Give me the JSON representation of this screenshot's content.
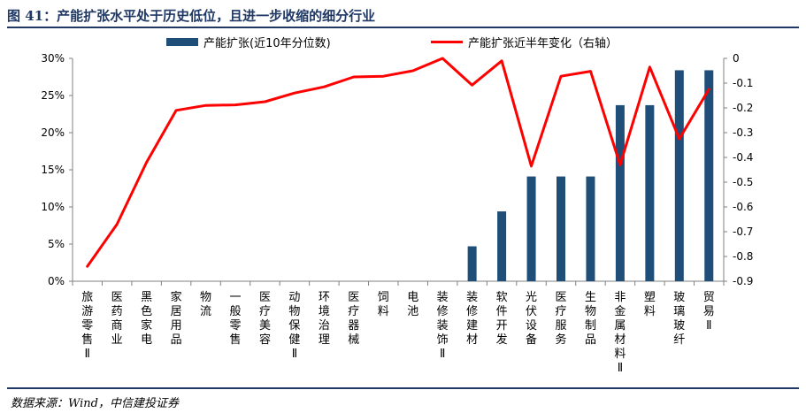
{
  "header": {
    "title": "图 41：产能扩张水平处于历史低位，且进一步收缩的细分行业"
  },
  "footer": {
    "source": "数据来源：Wind，中信建投证券"
  },
  "colors": {
    "bar": "#1f4e79",
    "line": "#ff0000",
    "axis": "#808080",
    "rule": "#1f3864"
  },
  "chart_data": {
    "type": "bar",
    "categories": [
      "旅游零售Ⅱ",
      "医药商业",
      "黑色家电",
      "家居用品",
      "物流",
      "一般零售",
      "医疗美容",
      "动物保健Ⅱ",
      "环境治理",
      "医疗器械",
      "饲料",
      "电池",
      "装修装饰Ⅱ",
      "装修建材",
      "软件开发",
      "光伏设备",
      "医疗服务",
      "生物制品",
      "非金属材料Ⅱ",
      "塑料",
      "玻璃玻纤",
      "贸易Ⅱ"
    ],
    "series": [
      {
        "name": "产能扩张(近10年分位数)",
        "type": "bar",
        "axis": "left",
        "values": [
          0,
          0,
          0,
          0,
          0,
          0,
          0,
          0,
          0,
          0,
          0,
          0,
          0,
          0.047,
          0.094,
          0.141,
          0.141,
          0.141,
          0.237,
          0.237,
          0.284,
          0.284
        ]
      },
      {
        "name": "产能扩张近半年变化（右轴）",
        "type": "line",
        "axis": "right",
        "values": [
          -0.84,
          -0.67,
          -0.42,
          -0.21,
          -0.19,
          -0.188,
          -0.175,
          -0.14,
          -0.115,
          -0.075,
          -0.072,
          -0.05,
          0.0,
          -0.108,
          -0.01,
          -0.435,
          -0.072,
          -0.052,
          -0.43,
          -0.035,
          -0.325,
          -0.125
        ]
      }
    ],
    "y_left": {
      "ylim": [
        0,
        0.3
      ],
      "ticks": [
        "0%",
        "5%",
        "10%",
        "15%",
        "20%",
        "25%",
        "30%"
      ]
    },
    "y_right": {
      "ylim": [
        -0.9,
        0
      ],
      "ticks": [
        "0",
        "-0.1",
        "-0.2",
        "-0.3",
        "-0.4",
        "-0.5",
        "-0.6",
        "-0.7",
        "-0.8",
        "-0.9"
      ]
    },
    "grid": false,
    "legend_position": "top"
  }
}
